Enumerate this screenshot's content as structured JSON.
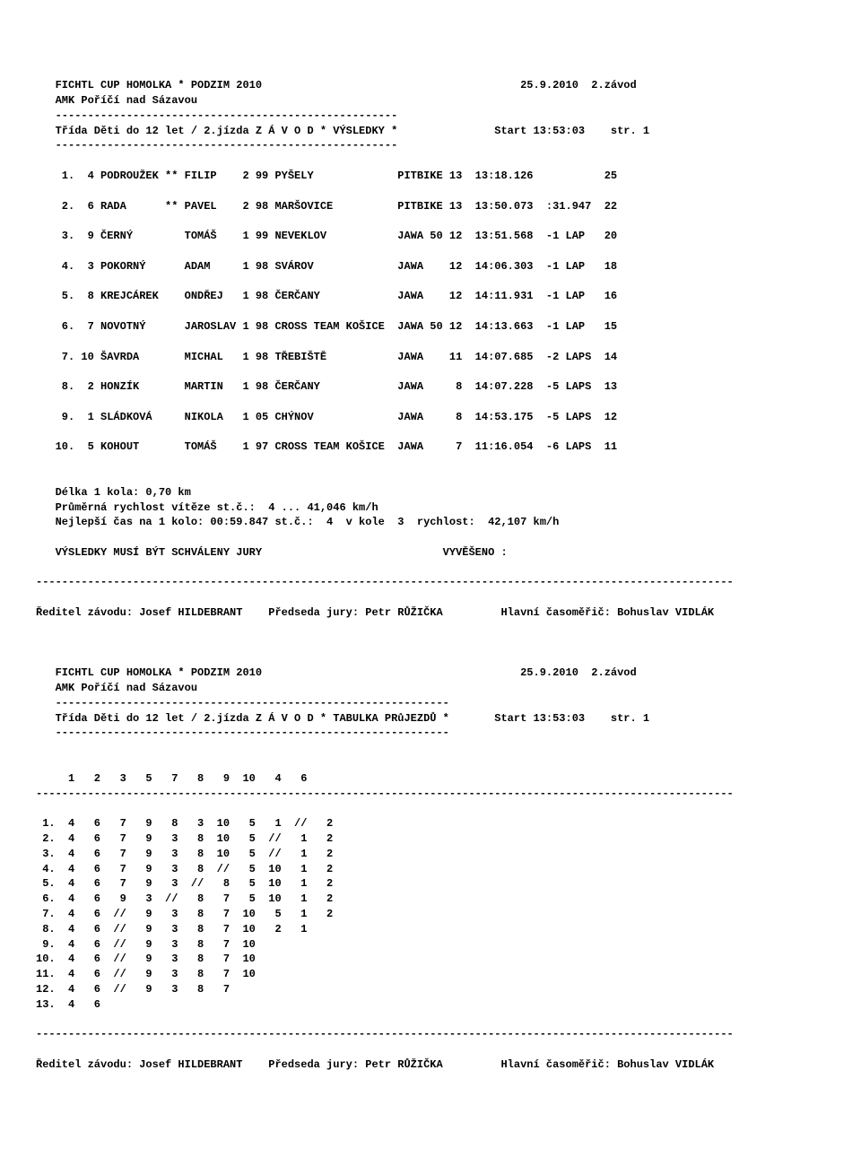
{
  "header": {
    "title_left": "FICHTL CUP HOMOLKA * PODZIM 2010",
    "title_right": "25.9.2010  2.závod",
    "club": "AMK Poříčí nad Sázavou",
    "sep1": "-----------------------------------------------------",
    "class_line_left": "Třída Děti do 12 let / 2.jízda Z Á V O D * VÝSLEDKY *",
    "class_line_right": "Start 13:53:03    str. 1",
    "sep2": "-----------------------------------------------------"
  },
  "results": [
    {
      "pos": " 1.",
      "num": " 4",
      "surname": "PODROUŽEK",
      "mark": "**",
      "first": "FILIP   ",
      "yr": "2",
      "no": "99",
      "town": "PYŠELY            ",
      "bike": "PITBIKE",
      "laps": "13",
      "time": "13:18.126",
      "gap": "          25"
    },
    {
      "pos": " 2.",
      "num": " 6",
      "surname": "RADA     ",
      "mark": "**",
      "first": "PAVEL   ",
      "yr": "2",
      "no": "98",
      "town": "MARŠOVICE         ",
      "bike": "PITBIKE",
      "laps": "13",
      "time": "13:50.073",
      "gap": " :31.947  22"
    },
    {
      "pos": " 3.",
      "num": " 9",
      "surname": "ČERNÝ    ",
      "mark": "  ",
      "first": "TOMÁŠ   ",
      "yr": "1",
      "no": "99",
      "town": "NEVEKLOV          ",
      "bike": "JAWA 50",
      "laps": "12",
      "time": "13:51.568",
      "gap": " -1 LAP   20"
    },
    {
      "pos": " 4.",
      "num": " 3",
      "surname": "POKORNÝ  ",
      "mark": "  ",
      "first": "ADAM    ",
      "yr": "1",
      "no": "98",
      "town": "SVÁROV            ",
      "bike": "JAWA   ",
      "laps": "12",
      "time": "14:06.303",
      "gap": " -1 LAP   18"
    },
    {
      "pos": " 5.",
      "num": " 8",
      "surname": "KREJCÁREK",
      "mark": "  ",
      "first": "ONDŘEJ  ",
      "yr": "1",
      "no": "98",
      "town": "ČERČANY           ",
      "bike": "JAWA   ",
      "laps": "12",
      "time": "14:11.931",
      "gap": " -1 LAP   16"
    },
    {
      "pos": " 6.",
      "num": " 7",
      "surname": "NOVOTNÝ  ",
      "mark": "  ",
      "first": "JAROSLAV",
      "yr": "1",
      "no": "98",
      "town": "CROSS TEAM KOŠICE ",
      "bike": "JAWA 50",
      "laps": "12",
      "time": "14:13.663",
      "gap": " -1 LAP   15"
    },
    {
      "pos": " 7.",
      "num": "10",
      "surname": "ŠAVRDA   ",
      "mark": "  ",
      "first": "MICHAL  ",
      "yr": "1",
      "no": "98",
      "town": "TŘEBIŠTĚ          ",
      "bike": "JAWA   ",
      "laps": "11",
      "time": "14:07.685",
      "gap": " -2 LAPS  14"
    },
    {
      "pos": " 8.",
      "num": " 2",
      "surname": "HONZÍK   ",
      "mark": "  ",
      "first": "MARTIN  ",
      "yr": "1",
      "no": "98",
      "town": "ČERČANY           ",
      "bike": "JAWA   ",
      "laps": " 8",
      "time": "14:07.228",
      "gap": " -5 LAPS  13"
    },
    {
      "pos": " 9.",
      "num": " 1",
      "surname": "SLÁDKOVÁ ",
      "mark": "  ",
      "first": "NIKOLA  ",
      "yr": "1",
      "no": "05",
      "town": "CHÝNOV            ",
      "bike": "JAWA   ",
      "laps": " 8",
      "time": "14:53.175",
      "gap": " -5 LAPS  12"
    },
    {
      "pos": "10.",
      "num": " 5",
      "surname": "KOHOUT   ",
      "mark": "  ",
      "first": "TOMÁŠ   ",
      "yr": "1",
      "no": "97",
      "town": "CROSS TEAM KOŠICE ",
      "bike": "JAWA   ",
      "laps": " 7",
      "time": "11:16.054",
      "gap": " -6 LAPS  11"
    }
  ],
  "stats": {
    "lap_len": "Délka 1 kola: 0,70 km",
    "avg": "Průměrná rychlost vítěze st.č.:  4 ... 41,046 km/h",
    "best": "Nejlepší čas na 1 kolo: 00:59.847 st.č.:  4  v kole  3  rychlost:  42,107 km/h",
    "jury_left": "VÝSLEDKY MUSÍ BÝT SCHVÁLENY JURY",
    "jury_right": "VYVĚŠENO :"
  },
  "longsep": "------------------------------------------------------------------------------------------------------------",
  "footer": {
    "director": "Ředitel závodu: Josef HILDEBRANT",
    "jury": "Předseda jury: Petr RŮŽIČKA",
    "timer": "Hlavní časoměřič: Bohuslav VIDLÁK"
  },
  "header2": {
    "sep": "-------------------------------------------------------------",
    "class_line_left": "Třída Děti do 12 let / 2.jízda Z Á V O D * TABULKA PRůJEZDŮ *",
    "class_line_right": "Start 13:53:03    str. 1"
  },
  "table_header": "     1   2   3   5   7   8   9  10   4   6",
  "table_rows": [
    " 1.  4   6   7   9   8   3  10   5   1  //   2",
    " 2.  4   6   7   9   3   8  10   5  //   1   2",
    " 3.  4   6   7   9   3   8  10   5  //   1   2",
    " 4.  4   6   7   9   3   8  //   5  10   1   2",
    " 5.  4   6   7   9   3  //   8   5  10   1   2",
    " 6.  4   6   9   3  //   8   7   5  10   1   2",
    " 7.  4   6  //   9   3   8   7  10   5   1   2",
    " 8.  4   6  //   9   3   8   7  10   2   1",
    " 9.  4   6  //   9   3   8   7  10",
    "10.  4   6  //   9   3   8   7  10",
    "11.  4   6  //   9   3   8   7  10",
    "12.  4   6  //   9   3   8   7",
    "13.  4   6"
  ]
}
